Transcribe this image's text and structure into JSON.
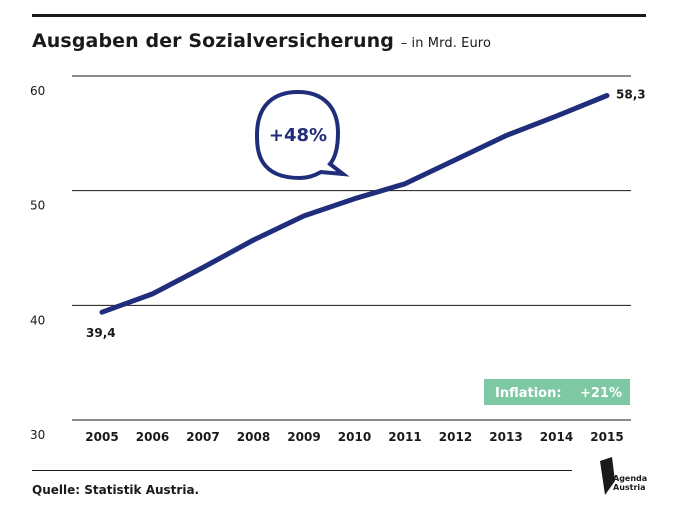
{
  "title": "Ausgaben der Sozialversicherung",
  "subtitle": "– in Mrd. Euro",
  "source": "Quelle: Statistik Austria.",
  "logo": {
    "line1": "Agenda",
    "line2": "Austria"
  },
  "callout": "+48%",
  "inflation": {
    "label": "Inflation:",
    "value": "+21%",
    "color": "#7fc8a4"
  },
  "colors": {
    "line": "#1f2d7a",
    "grid": "#1a1a1a"
  },
  "chart_data": {
    "type": "line",
    "x": [
      "2005",
      "2006",
      "2007",
      "2008",
      "2009",
      "2010",
      "2011",
      "2012",
      "2013",
      "2014",
      "2015"
    ],
    "series": [
      {
        "values": [
          39.4,
          41.0,
          43.3,
          45.7,
          47.8,
          49.3,
          50.6,
          52.7,
          54.8,
          56.5,
          58.3
        ]
      }
    ],
    "ylim": [
      30,
      60
    ],
    "yticks": [
      30,
      40,
      50,
      60
    ],
    "ytick_labels": [
      "30",
      "40",
      "50",
      "60"
    ],
    "data_labels": [
      {
        "index": 0,
        "text": "39,4"
      },
      {
        "index": 10,
        "text": "58,3"
      }
    ],
    "grid": true
  }
}
